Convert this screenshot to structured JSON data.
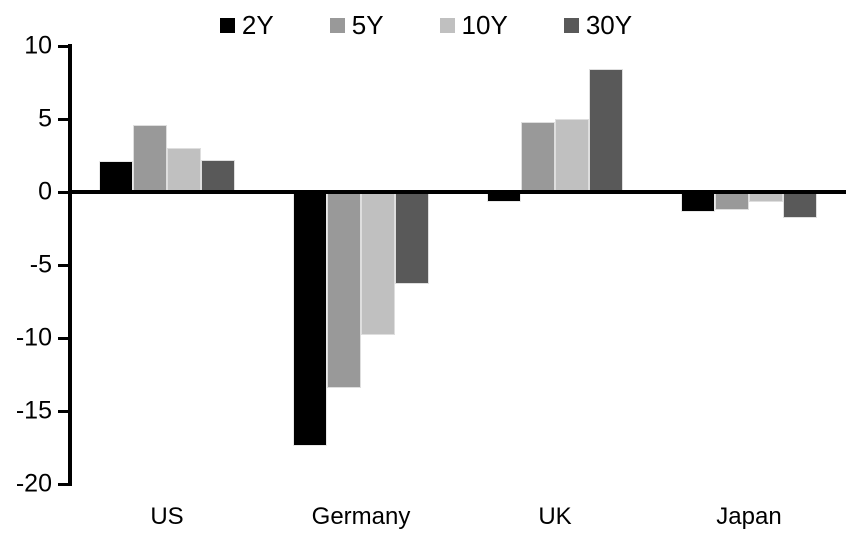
{
  "chart_data": {
    "type": "bar",
    "title": "",
    "xlabel": "",
    "ylabel": "",
    "categories": [
      "US",
      "Germany",
      "UK",
      "Japan"
    ],
    "series": [
      {
        "name": "2Y",
        "color": "#000000",
        "values": [
          2.1,
          -17.4,
          -0.7,
          -1.4
        ]
      },
      {
        "name": "5Y",
        "color": "#999999",
        "values": [
          4.6,
          -13.4,
          4.8,
          -1.2
        ]
      },
      {
        "name": "10Y",
        "color": "#c0c0c0",
        "values": [
          3.0,
          -9.8,
          5.0,
          -0.7
        ]
      },
      {
        "name": "30Y",
        "color": "#595959",
        "values": [
          2.2,
          -6.3,
          8.4,
          -1.8
        ]
      }
    ],
    "ylim": [
      -20,
      10
    ],
    "yticks": [
      10,
      5,
      0,
      -5,
      -10,
      -15,
      -20
    ],
    "legend_position": "top",
    "grid": false,
    "baseline_value": 0,
    "axis_color": "#000000",
    "background_color": "#ffffff"
  }
}
